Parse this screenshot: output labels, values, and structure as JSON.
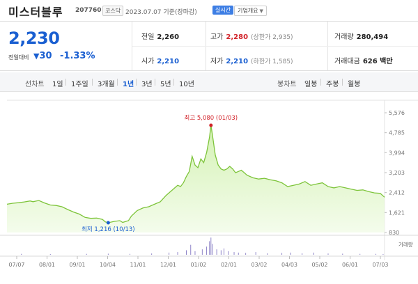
{
  "header": {
    "name": "미스터블루",
    "code": "207760",
    "market": "코스닥",
    "date": "2023.07.07 기준(장마감)",
    "realtime": "실시간",
    "corp_info": "기업개요"
  },
  "price": {
    "current": "2,230",
    "change_label": "전일대비",
    "change": "30",
    "change_pct": "-1.33%"
  },
  "stats": {
    "prev_close_label": "전일",
    "prev_close": "2,260",
    "open_label": "시가",
    "open": "2,210",
    "high_label": "고가",
    "high": "2,280",
    "upper_limit": "(상한가 2,935)",
    "low_label": "저가",
    "low": "2,210",
    "lower_limit": "(하한가 1,585)",
    "volume_label": "거래량",
    "volume": "280,494",
    "amount_label": "거래대금",
    "amount": "626 백만"
  },
  "tabs": {
    "line_label": "선차트",
    "line_tabs": [
      "1일",
      "1주일",
      "3개월",
      "1년",
      "3년",
      "5년",
      "10년"
    ],
    "active_line_tab": "1년",
    "candle_label": "봉차트",
    "candle_tabs": [
      "일봉",
      "주봉",
      "월봉"
    ]
  },
  "colors": {
    "up": "#d2232a",
    "down": "#1a5fd1",
    "line": "#7dc43a",
    "fill": "#e8f8d5"
  },
  "chart_data": {
    "type": "area",
    "ylim": [
      830,
      5576
    ],
    "y_ticks": [
      "5,576",
      "4,785",
      "3,994",
      "3,203",
      "2,412",
      "1,621",
      "830"
    ],
    "x_ticks": [
      "07/07",
      "08/01",
      "09/01",
      "10/04",
      "11/01",
      "12/01",
      "01/02",
      "02/01",
      "03/02",
      "04/03",
      "05/02",
      "06/01",
      "07/03"
    ],
    "max_annotation": "최고 5,080 (01/03)",
    "min_annotation": "최저 1,216 (10/13)",
    "volume_label": "거래량",
    "price_series": [
      [
        0,
        1950
      ],
      [
        4,
        1990
      ],
      [
        8,
        2010
      ],
      [
        12,
        2040
      ],
      [
        16,
        2080
      ],
      [
        18,
        2050
      ],
      [
        22,
        2100
      ],
      [
        26,
        2000
      ],
      [
        30,
        1920
      ],
      [
        34,
        1900
      ],
      [
        38,
        1850
      ],
      [
        42,
        1740
      ],
      [
        46,
        1640
      ],
      [
        50,
        1560
      ],
      [
        54,
        1430
      ],
      [
        58,
        1390
      ],
      [
        62,
        1400
      ],
      [
        66,
        1350
      ],
      [
        68,
        1250
      ],
      [
        70,
        1216
      ],
      [
        74,
        1270
      ],
      [
        78,
        1300
      ],
      [
        80,
        1230
      ],
      [
        84,
        1300
      ],
      [
        86,
        1480
      ],
      [
        90,
        1700
      ],
      [
        94,
        1800
      ],
      [
        98,
        1850
      ],
      [
        102,
        1950
      ],
      [
        106,
        2050
      ],
      [
        110,
        2300
      ],
      [
        114,
        2500
      ],
      [
        118,
        2700
      ],
      [
        120,
        2650
      ],
      [
        122,
        2800
      ],
      [
        124,
        3050
      ],
      [
        126,
        3250
      ],
      [
        128,
        3850
      ],
      [
        130,
        3500
      ],
      [
        132,
        3400
      ],
      [
        134,
        3750
      ],
      [
        136,
        3600
      ],
      [
        138,
        4000
      ],
      [
        140,
        4600
      ],
      [
        141,
        5080
      ],
      [
        142,
        4700
      ],
      [
        144,
        3900
      ],
      [
        146,
        3500
      ],
      [
        148,
        3350
      ],
      [
        150,
        3300
      ],
      [
        152,
        3350
      ],
      [
        154,
        3450
      ],
      [
        156,
        3350
      ],
      [
        158,
        3200
      ],
      [
        160,
        3250
      ],
      [
        162,
        3300
      ],
      [
        164,
        3200
      ],
      [
        166,
        3100
      ],
      [
        170,
        3000
      ],
      [
        174,
        2950
      ],
      [
        178,
        2980
      ],
      [
        182,
        2920
      ],
      [
        186,
        2880
      ],
      [
        190,
        2800
      ],
      [
        194,
        2650
      ],
      [
        198,
        2700
      ],
      [
        202,
        2750
      ],
      [
        206,
        2850
      ],
      [
        210,
        2700
      ],
      [
        214,
        2750
      ],
      [
        218,
        2800
      ],
      [
        222,
        2650
      ],
      [
        226,
        2600
      ],
      [
        230,
        2650
      ],
      [
        234,
        2600
      ],
      [
        238,
        2550
      ],
      [
        242,
        2500
      ],
      [
        246,
        2520
      ],
      [
        250,
        2450
      ],
      [
        254,
        2400
      ],
      [
        258,
        2380
      ],
      [
        261,
        2230
      ]
    ],
    "volume_series": [
      [
        10,
        0.05
      ],
      [
        30,
        0.04
      ],
      [
        55,
        0.05
      ],
      [
        70,
        0.06
      ],
      [
        85,
        0.05
      ],
      [
        100,
        0.07
      ],
      [
        112,
        0.12
      ],
      [
        118,
        0.15
      ],
      [
        124,
        0.25
      ],
      [
        127,
        0.55
      ],
      [
        130,
        0.2
      ],
      [
        135,
        0.3
      ],
      [
        138,
        0.45
      ],
      [
        140,
        0.75
      ],
      [
        141,
        0.95
      ],
      [
        142,
        0.6
      ],
      [
        145,
        0.3
      ],
      [
        148,
        0.25
      ],
      [
        150,
        0.35
      ],
      [
        153,
        0.2
      ],
      [
        157,
        0.15
      ],
      [
        160,
        0.12
      ],
      [
        165,
        0.1
      ],
      [
        172,
        0.15
      ],
      [
        180,
        0.08
      ],
      [
        190,
        0.1
      ],
      [
        196,
        0.12
      ],
      [
        204,
        0.08
      ],
      [
        212,
        0.12
      ],
      [
        222,
        0.07
      ],
      [
        232,
        0.06
      ],
      [
        244,
        0.05
      ],
      [
        255,
        0.05
      ],
      [
        260,
        0.04
      ]
    ]
  }
}
